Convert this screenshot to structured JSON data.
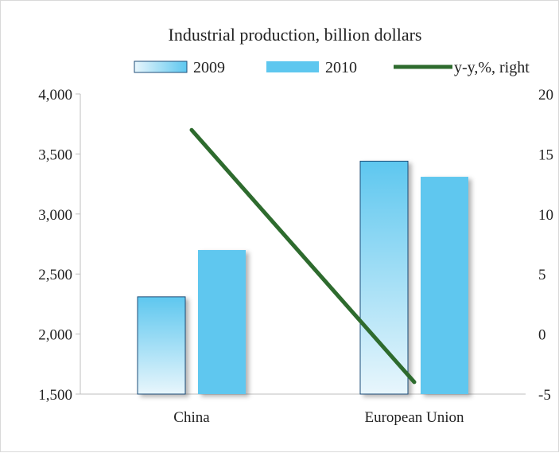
{
  "chart_data": {
    "type": "bar",
    "title": "Industrial production,  billion  dollars",
    "categories": [
      "China",
      "European Union"
    ],
    "series": [
      {
        "name": "2009",
        "values": [
          2310,
          3440
        ],
        "style": "gradient",
        "color": "#5ec7ef"
      },
      {
        "name": "2010",
        "values": [
          2700,
          3310
        ],
        "style": "solid",
        "color": "#5ec7ef"
      }
    ],
    "line_series": {
      "name": "y-y,%, right",
      "values": [
        17,
        -4
      ],
      "color": "#2e6b2e",
      "axis": "right"
    },
    "left_axis": {
      "ylim": [
        1500,
        4000
      ],
      "ticks": [
        4000,
        3500,
        3000,
        2500,
        2000,
        1500
      ],
      "tick_labels": [
        "4,000",
        "3,500",
        "3,000",
        "2,500",
        "2,000",
        "1,500"
      ]
    },
    "right_axis": {
      "ylim": [
        -5,
        20
      ],
      "ticks": [
        20,
        15,
        10,
        5,
        0,
        -5
      ],
      "tick_labels": [
        "20",
        "15",
        "10",
        "5",
        "0",
        "-5"
      ]
    },
    "legend": {
      "placement": "top",
      "entries": [
        "2009",
        "2010",
        "y-y,%, right"
      ]
    },
    "grid": false
  }
}
